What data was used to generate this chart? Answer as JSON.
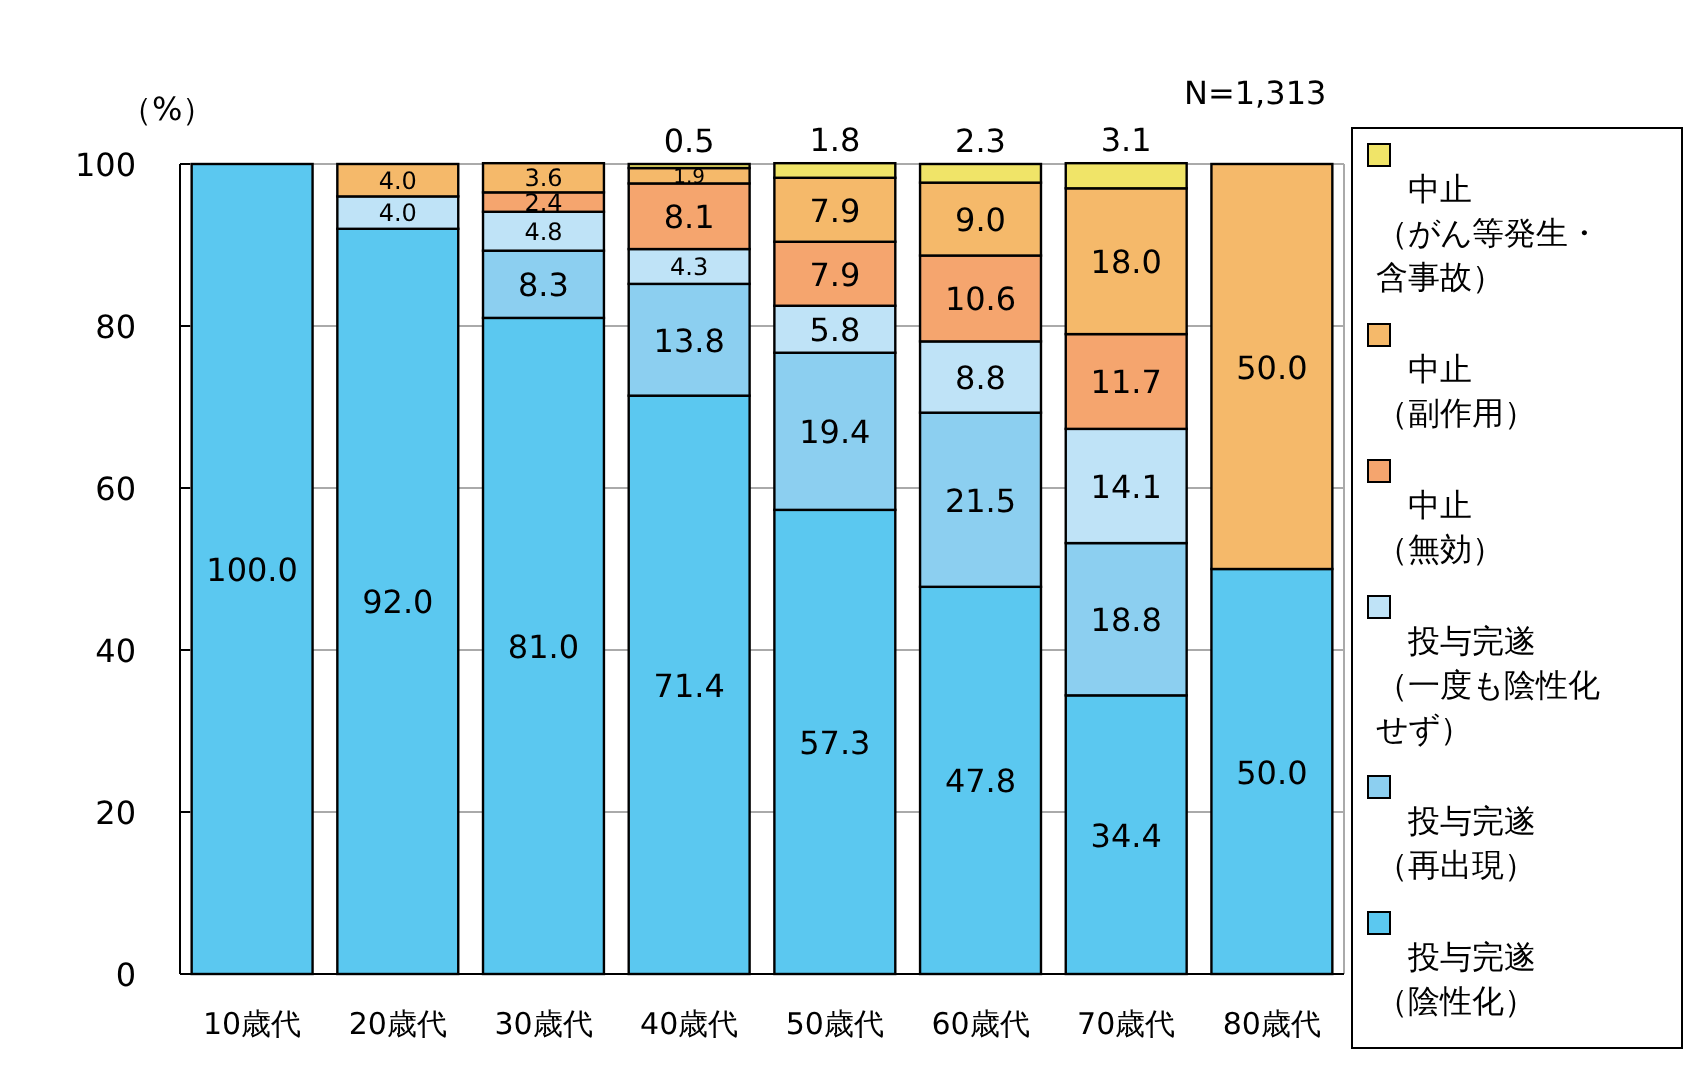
{
  "chart_data": {
    "type": "bar",
    "stacked": true,
    "ylabel": "（%）",
    "annotations": [
      "N=1,313"
    ],
    "categories": [
      "10歳代",
      "20歳代",
      "30歳代",
      "40歳代",
      "50歳代",
      "60歳代",
      "70歳代",
      "80歳代"
    ],
    "ylim": [
      0,
      100
    ],
    "yticks": [
      0,
      20,
      40,
      60,
      80,
      100
    ],
    "grid": "y",
    "legend": "right",
    "series": [
      {
        "name": "投与完遂（陰性化）",
        "color": "#5bc8f0",
        "values": [
          100.0,
          92.0,
          81.0,
          71.4,
          57.3,
          47.8,
          34.4,
          50.0
        ],
        "value_labels": [
          "100.0",
          "92.0",
          "81.0",
          "71.4",
          "57.3",
          "47.8",
          "34.4",
          "50.0"
        ]
      },
      {
        "name": "投与完遂（再出現）",
        "color": "#8ccff0",
        "values": [
          0,
          0,
          8.3,
          13.8,
          19.4,
          21.5,
          18.8,
          0
        ],
        "value_labels": [
          null,
          null,
          "8.3",
          "13.8",
          "19.4",
          "21.5",
          "18.8",
          null
        ]
      },
      {
        "name": "投与完遂（一度も陰性化せず）",
        "color": "#bfe3f7",
        "values": [
          0,
          4.0,
          4.8,
          4.3,
          5.8,
          8.8,
          14.1,
          0
        ],
        "value_labels": [
          null,
          "4.0",
          "4.8",
          "4.3",
          "5.8",
          "8.8",
          "14.1",
          null
        ]
      },
      {
        "name": "中止（無効）",
        "color": "#f5a56e",
        "values": [
          0,
          0,
          2.4,
          8.1,
          7.9,
          10.6,
          11.7,
          0
        ],
        "value_labels": [
          null,
          null,
          "2.4",
          "8.1",
          "7.9",
          "10.6",
          "11.7",
          null
        ]
      },
      {
        "name": "中止（副作用）",
        "color": "#f5b96a",
        "values": [
          0,
          4.0,
          3.6,
          1.9,
          7.9,
          9.0,
          18.0,
          50.0
        ],
        "value_labels": [
          null,
          "4.0",
          "3.6",
          "1.9",
          "7.9",
          "9.0",
          "18.0",
          "50.0"
        ]
      },
      {
        "name": "中止（がん等発生・含事故）",
        "color": "#f0e468",
        "values": [
          0,
          0,
          0,
          0.5,
          1.8,
          2.3,
          3.1,
          0
        ],
        "value_labels": [
          null,
          null,
          null,
          "0.5",
          "1.8",
          "2.3",
          "3.1",
          null
        ]
      }
    ]
  }
}
